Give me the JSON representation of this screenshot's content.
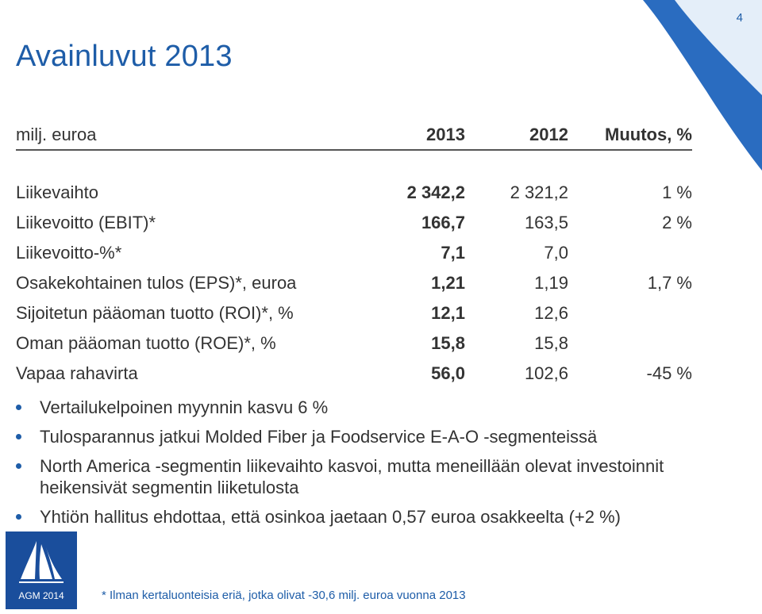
{
  "page_number": "4",
  "title": "Avainluvut 2013",
  "table": {
    "headers": [
      "milj. euroa",
      "2013",
      "2012",
      "Muutos, %"
    ],
    "rows": [
      [
        "Liikevaihto",
        "2 342,2",
        "2 321,2",
        "1 %"
      ],
      [
        "Liikevoitto (EBIT)*",
        "166,7",
        "163,5",
        "2 %"
      ],
      [
        "Liikevoitto-%*",
        "7,1",
        "7,0",
        ""
      ],
      [
        "Osakekohtainen tulos (EPS)*, euroa",
        "1,21",
        "1,19",
        "1,7 %"
      ],
      [
        "Sijoitetun pääoman tuotto (ROI)*, %",
        "12,1",
        "12,6",
        ""
      ],
      [
        "Oman pääoman tuotto (ROE)*, %",
        "15,8",
        "15,8",
        ""
      ],
      [
        "Vapaa rahavirta",
        "56,0",
        "102,6",
        "-45 %"
      ]
    ]
  },
  "bullets": [
    "Vertailukelpoinen myynnin kasvu 6 %",
    "Tulosparannus jatkui Molded Fiber ja Foodservice E-A-O -segmenteissä",
    "North America -segmentin liikevaihto kasvoi, mutta meneillään olevat investoinnit heikensivät segmentin liiketulosta",
    "Yhtiön hallitus ehdottaa, että osinkoa jaetaan 0,57 euroa osakkeelta (+2 %)"
  ],
  "footer": {
    "agm_label": "AGM 2014",
    "footnote": "* Ilman kertaluonteisia eriä, jotka olivat -30,6 milj. euroa vuonna 2013"
  },
  "colors": {
    "accent": "#1e5da8",
    "logo_bg": "#1a4e9c",
    "text": "#333333"
  },
  "logo_icon": "sailboat-icon"
}
